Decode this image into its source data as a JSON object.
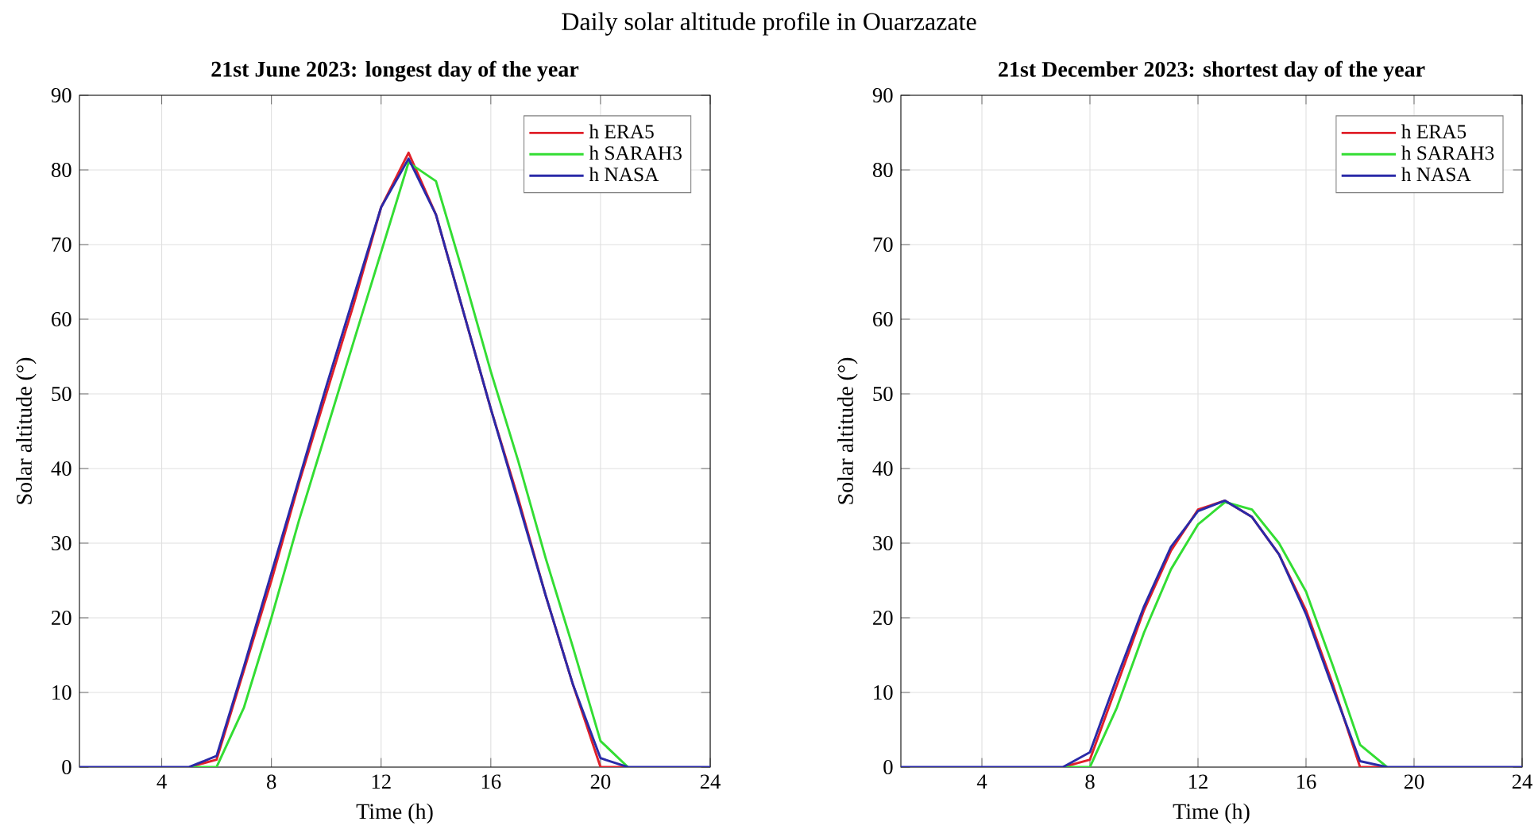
{
  "chart_data": [
    {
      "type": "line",
      "title": "21st June 2023: longest day of the year",
      "xlabel": "Time (h)",
      "ylabel": "Solar altitude (°)",
      "annotations": [
        "Daily solar altitude profile in Ouarzazate"
      ],
      "xlim": [
        1,
        24
      ],
      "ylim": [
        0,
        90
      ],
      "xticks": [
        4,
        8,
        12,
        16,
        20,
        24
      ],
      "yticks": [
        0,
        10,
        20,
        30,
        40,
        50,
        60,
        70,
        80,
        90
      ],
      "grid": true,
      "legend": "top right",
      "marker": "none",
      "line_style": "solid",
      "x": [
        1,
        2,
        3,
        4,
        5,
        6,
        7,
        8,
        9,
        10,
        11,
        12,
        13,
        14,
        15,
        16,
        17,
        18,
        19,
        20,
        21,
        22,
        23,
        24
      ],
      "series": [
        {
          "name": "h ERA5",
          "color": "#e0202a",
          "values": [
            null,
            null,
            null,
            null,
            0,
            1,
            13,
            25,
            38,
            50,
            62,
            75,
            82.3,
            74,
            61,
            48,
            36,
            23,
            11,
            0,
            0,
            null,
            null,
            null
          ]
        },
        {
          "name": "h SARAH3",
          "color": "#33dd33",
          "values": [
            null,
            null,
            null,
            null,
            0,
            0,
            8,
            20,
            33,
            45,
            57,
            69,
            81,
            78.5,
            66,
            53,
            41,
            28,
            16,
            3.5,
            0,
            null,
            null,
            null
          ]
        },
        {
          "name": "h NASA",
          "color": "#2a2aa8",
          "values": [
            0,
            0,
            0,
            0,
            0,
            1.5,
            13.5,
            26,
            38.5,
            51,
            63,
            75,
            81.5,
            74,
            61,
            48,
            35.5,
            23,
            11,
            1.2,
            0,
            0,
            0,
            0
          ]
        }
      ]
    },
    {
      "type": "line",
      "title": "21st December 2023: shortest day of the year",
      "xlabel": "Time (h)",
      "ylabel": "Solar altitude (°)",
      "xlim": [
        1,
        24
      ],
      "ylim": [
        0,
        90
      ],
      "xticks": [
        4,
        8,
        12,
        16,
        20,
        24
      ],
      "yticks": [
        0,
        10,
        20,
        30,
        40,
        50,
        60,
        70,
        80,
        90
      ],
      "grid": true,
      "legend": "top right",
      "marker": "none",
      "line_style": "solid",
      "x": [
        1,
        2,
        3,
        4,
        5,
        6,
        7,
        8,
        9,
        10,
        11,
        12,
        13,
        14,
        15,
        16,
        17,
        18,
        19,
        20,
        21,
        22,
        23,
        24
      ],
      "series": [
        {
          "name": "h ERA5",
          "color": "#e0202a",
          "values": [
            null,
            null,
            null,
            null,
            null,
            null,
            0,
            1,
            11,
            21,
            29,
            34.5,
            35.7,
            33.5,
            28.5,
            21,
            11,
            0,
            0,
            null,
            null,
            null,
            null,
            null
          ]
        },
        {
          "name": "h SARAH3",
          "color": "#33dd33",
          "values": [
            null,
            null,
            null,
            null,
            null,
            null,
            0,
            0,
            8,
            18,
            26.5,
            32.5,
            35.5,
            34.5,
            30,
            23.5,
            13.5,
            3,
            0,
            null,
            null,
            null,
            null,
            null
          ]
        },
        {
          "name": "h NASA",
          "color": "#2a2aa8",
          "values": [
            0,
            0,
            0,
            0,
            0,
            0,
            0,
            2,
            12,
            21.5,
            29.5,
            34.3,
            35.7,
            33.5,
            28.5,
            20.5,
            10.5,
            0.8,
            0,
            0,
            0,
            0,
            0,
            0
          ]
        }
      ]
    }
  ]
}
